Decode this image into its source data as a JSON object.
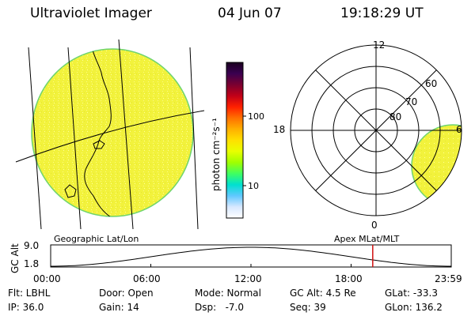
{
  "header": {
    "instrument": "Ultraviolet Imager",
    "date": "04 Jun 07",
    "time": "19:18:29 UT"
  },
  "colorbar": {
    "unit_label": "photon cm⁻²s⁻¹",
    "tick_labels": [
      "100",
      "10"
    ],
    "colors": [
      "#1a0020",
      "#3a0050",
      "#7a0030",
      "#c00018",
      "#ff2000",
      "#ff7000",
      "#ffb000",
      "#ffe000",
      "#e8ff00",
      "#a0ff00",
      "#40ff60",
      "#00e0d0",
      "#60c8ff",
      "#d8e8ff",
      "#ffffff"
    ]
  },
  "geo_panel": {
    "label": "Geographic Lat/Lon",
    "fill_color": "#f2f23c"
  },
  "polar_panel": {
    "label": "Apex MLat/MLT",
    "mlt_labels": [
      "12",
      "18",
      "6",
      "0"
    ],
    "lat_labels": [
      "60",
      "70",
      "80"
    ]
  },
  "timeline": {
    "axis_title": "GC Alt",
    "y_labels": [
      "9.0",
      "1.8"
    ],
    "x_labels": [
      "00:00",
      "06:00",
      "12:00",
      "18:00",
      "23:59"
    ],
    "marker_color": "#d01010",
    "current_time_fraction": 0.804
  },
  "info": {
    "row1": [
      "Flt: LBHL",
      "Door: Open",
      "Mode: Normal",
      "GC Alt: 4.5 Re",
      "GLat: -33.3"
    ],
    "row2": [
      "IP: 36.0",
      "Gain: 14",
      "Dsp:   -7.0",
      "Seq: 39",
      "GLon: 136.2"
    ]
  }
}
